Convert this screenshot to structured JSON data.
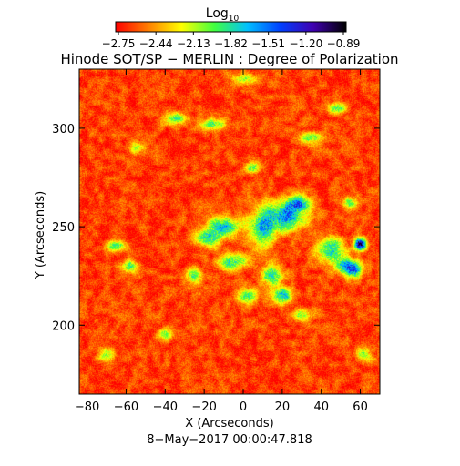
{
  "chart_data": {
    "type": "heatmap",
    "title": "Hinode SOT/SP − MERLIN : Degree of Polarization",
    "xlabel": "X (Arcseconds)",
    "ylabel": "Y (Arcseconds)",
    "footer": "8−May−2017 00:00:47.818",
    "colorbar": {
      "label_main": "Log",
      "label_sub": "10",
      "ticks": [
        "−2.75",
        "−2.44",
        "−2.13",
        "−1.82",
        "−1.51",
        "−1.20",
        "−0.89"
      ],
      "range": [
        -2.75,
        -0.89
      ],
      "colors": [
        "#ff0000",
        "#ff8000",
        "#ffff00",
        "#40ff40",
        "#00c0ff",
        "#0040ff",
        "#4000b0",
        "#000000"
      ]
    },
    "xlim": [
      -84,
      70
    ],
    "ylim": [
      165,
      330
    ],
    "x_ticks": [
      {
        "v": -80,
        "label": "−80"
      },
      {
        "v": -60,
        "label": "−60"
      },
      {
        "v": -40,
        "label": "−40"
      },
      {
        "v": -20,
        "label": "−20"
      },
      {
        "v": 0,
        "label": "0"
      },
      {
        "v": 20,
        "label": "20"
      },
      {
        "v": 40,
        "label": "40"
      },
      {
        "v": 60,
        "label": "60"
      }
    ],
    "y_ticks": [
      {
        "v": 200,
        "label": "200"
      },
      {
        "v": 250,
        "label": "250"
      },
      {
        "v": 300,
        "label": "300"
      }
    ],
    "background_level": -2.62,
    "features": [
      {
        "x": 22,
        "y": 255,
        "sx": 10,
        "sy": 7,
        "a": 1.05
      },
      {
        "x": 28,
        "y": 262,
        "sx": 6,
        "sy": 4,
        "a": 0.9
      },
      {
        "x": 10,
        "y": 250,
        "sx": 6,
        "sy": 10,
        "a": 0.85
      },
      {
        "x": -10,
        "y": 250,
        "sx": 9,
        "sy": 5,
        "a": 0.9
      },
      {
        "x": -18,
        "y": 244,
        "sx": 6,
        "sy": 4,
        "a": 0.8
      },
      {
        "x": -5,
        "y": 232,
        "sx": 8,
        "sy": 4,
        "a": 0.8
      },
      {
        "x": 15,
        "y": 225,
        "sx": 5,
        "sy": 5,
        "a": 0.9
      },
      {
        "x": 20,
        "y": 215,
        "sx": 5,
        "sy": 4,
        "a": 0.95
      },
      {
        "x": 2,
        "y": 215,
        "sx": 5,
        "sy": 4,
        "a": 0.7
      },
      {
        "x": 45,
        "y": 238,
        "sx": 7,
        "sy": 6,
        "a": 0.9
      },
      {
        "x": 52,
        "y": 230,
        "sx": 5,
        "sy": 4,
        "a": 0.85
      },
      {
        "x": 60,
        "y": 241,
        "sx": 3,
        "sy": 3,
        "a": 1.6
      },
      {
        "x": 57,
        "y": 228,
        "sx": 4,
        "sy": 4,
        "a": 1.0
      },
      {
        "x": 55,
        "y": 262,
        "sx": 4,
        "sy": 3,
        "a": 0.7
      },
      {
        "x": -65,
        "y": 240,
        "sx": 5,
        "sy": 3,
        "a": 0.75
      },
      {
        "x": -58,
        "y": 230,
        "sx": 4,
        "sy": 3,
        "a": 0.7
      },
      {
        "x": -35,
        "y": 305,
        "sx": 5,
        "sy": 3,
        "a": 0.8
      },
      {
        "x": -15,
        "y": 302,
        "sx": 6,
        "sy": 3,
        "a": 0.7
      },
      {
        "x": 35,
        "y": 295,
        "sx": 7,
        "sy": 3,
        "a": 0.7
      },
      {
        "x": 48,
        "y": 310,
        "sx": 5,
        "sy": 3,
        "a": 0.75
      },
      {
        "x": 0,
        "y": 325,
        "sx": 6,
        "sy": 3,
        "a": 0.6
      },
      {
        "x": -25,
        "y": 225,
        "sx": 4,
        "sy": 4,
        "a": 0.7
      },
      {
        "x": 30,
        "y": 205,
        "sx": 5,
        "sy": 3,
        "a": 0.6
      },
      {
        "x": -70,
        "y": 185,
        "sx": 4,
        "sy": 3,
        "a": 0.6
      },
      {
        "x": -40,
        "y": 195,
        "sx": 4,
        "sy": 3,
        "a": 0.55
      },
      {
        "x": 62,
        "y": 185,
        "sx": 4,
        "sy": 4,
        "a": 0.6
      },
      {
        "x": -55,
        "y": 290,
        "sx": 4,
        "sy": 3,
        "a": 0.55
      },
      {
        "x": 5,
        "y": 280,
        "sx": 4,
        "sy": 3,
        "a": 0.6
      }
    ]
  }
}
